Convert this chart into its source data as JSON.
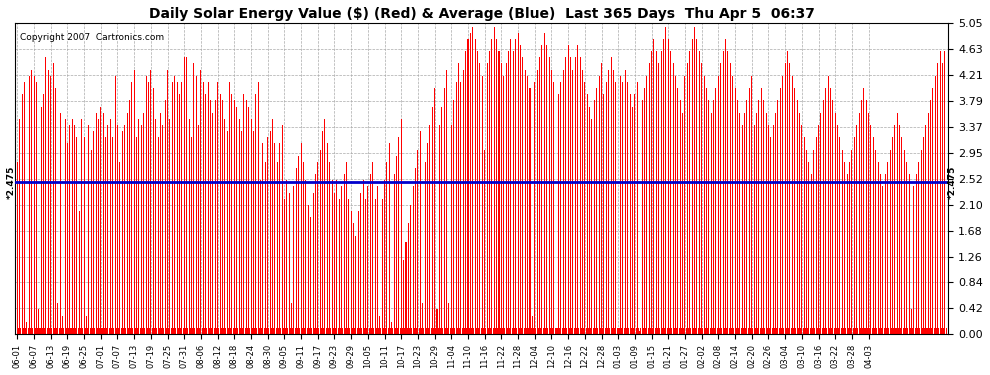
{
  "title": "Daily Solar Energy Value ($) (Red) & Average (Blue)  Last 365 Days  Thu Apr 5  06:37",
  "copyright": "Copyright 2007  Cartronics.com",
  "average_value": 2.475,
  "ylim": [
    0.0,
    5.05
  ],
  "yticks": [
    0.0,
    0.42,
    0.84,
    1.26,
    1.68,
    2.1,
    2.52,
    2.95,
    3.37,
    3.79,
    4.21,
    4.63,
    5.05
  ],
  "bar_color": "#ff0000",
  "avg_line_color": "#0000cc",
  "background_color": "#ffffff",
  "grid_color": "#aaaaaa",
  "title_fontsize": 10,
  "x_labels": [
    "06-01",
    "06-07",
    "06-13",
    "06-19",
    "06-25",
    "07-01",
    "07-07",
    "07-13",
    "07-19",
    "07-25",
    "07-31",
    "08-06",
    "08-12",
    "08-18",
    "08-24",
    "08-30",
    "09-05",
    "09-11",
    "09-17",
    "09-23",
    "09-29",
    "10-05",
    "10-11",
    "10-17",
    "10-23",
    "10-29",
    "11-04",
    "11-10",
    "11-16",
    "11-22",
    "11-28",
    "12-04",
    "12-10",
    "12-16",
    "12-22",
    "12-28",
    "01-03",
    "01-09",
    "01-15",
    "01-21",
    "01-27",
    "02-02",
    "02-08",
    "02-14",
    "02-20",
    "02-26",
    "03-04",
    "03-10",
    "03-16",
    "03-22",
    "03-28",
    "04-03"
  ],
  "values": [
    2.8,
    0.1,
    3.5,
    0.1,
    3.9,
    0.1,
    4.1,
    0.1,
    0.2,
    0.1,
    4.2,
    0.1,
    4.3,
    0.1,
    4.2,
    0.1,
    4.1,
    0.1,
    0.4,
    0.1,
    3.7,
    0.1,
    3.9,
    0.1,
    4.5,
    0.1,
    4.3,
    0.1,
    4.2,
    0.1,
    4.4,
    0.1,
    4.0,
    0.1,
    0.5,
    0.1,
    3.6,
    0.1,
    0.3,
    0.1,
    3.5,
    0.1,
    3.1,
    0.1,
    3.4,
    0.1,
    3.5,
    0.1,
    3.4,
    0.1,
    3.2,
    0.1,
    2.0,
    0.1,
    3.5,
    0.1,
    3.2,
    0.1,
    0.3,
    0.1,
    3.4,
    0.1,
    3.0,
    0.1,
    3.3,
    0.1,
    3.6,
    0.1,
    3.5,
    0.1,
    3.7,
    0.1,
    3.6,
    0.1,
    3.2,
    0.1,
    3.4,
    0.1,
    3.5,
    0.1,
    3.2,
    0.1,
    4.2,
    0.1,
    3.4,
    0.1,
    2.8,
    0.1,
    3.3,
    0.1,
    3.4,
    0.1,
    3.6,
    0.1,
    3.8,
    0.1,
    4.1,
    0.1,
    4.3,
    0.1,
    3.2,
    0.1,
    3.5,
    0.1,
    3.4,
    0.1,
    3.6,
    0.1,
    4.2,
    0.1,
    4.1,
    0.1,
    4.3,
    0.1,
    4.0,
    0.1,
    3.5,
    0.1,
    3.2,
    0.1,
    3.6,
    0.1,
    3.4,
    0.1,
    3.8,
    0.1,
    4.3,
    0.1,
    3.5,
    0.1,
    4.1,
    0.1,
    4.2,
    0.1,
    4.1,
    0.1,
    3.9,
    0.1,
    4.1,
    0.1,
    4.5,
    0.1,
    4.5,
    0.1,
    3.5,
    0.1,
    3.2,
    0.1,
    4.4,
    0.1,
    4.2,
    0.1,
    3.4,
    0.1,
    4.3,
    0.1,
    4.1,
    0.1,
    3.9,
    0.1,
    4.1,
    0.1,
    3.8,
    0.1,
    3.6,
    0.1,
    3.8,
    0.1,
    4.1,
    0.1,
    3.9,
    0.1,
    3.8,
    0.1,
    3.5,
    0.1,
    3.3,
    0.1,
    4.1,
    0.1,
    3.9,
    0.1,
    3.8,
    0.1,
    3.7,
    0.1,
    3.5,
    0.1,
    3.3,
    0.1,
    3.9,
    0.1,
    3.8,
    0.1,
    3.7,
    0.1,
    3.5,
    0.1,
    3.3,
    0.1,
    3.9,
    0.1,
    4.1,
    0.1,
    2.5,
    0.1,
    3.1,
    0.1,
    2.8,
    0.1,
    3.2,
    0.1,
    3.3,
    0.1,
    3.5,
    0.1,
    3.1,
    0.1,
    2.8,
    0.1,
    3.1,
    0.1,
    3.4,
    0.1,
    2.2,
    0.1,
    2.5,
    0.1,
    2.3,
    0.1,
    0.5,
    0.1,
    2.4,
    0.1,
    2.7,
    0.1,
    2.9,
    0.1,
    3.1,
    0.1,
    2.8,
    0.1,
    2.5,
    0.1,
    2.1,
    0.1,
    1.9,
    0.1,
    2.3,
    0.1,
    2.6,
    0.1,
    2.8,
    0.1,
    3.0,
    0.1,
    3.3,
    0.1,
    3.5,
    0.1,
    3.1,
    0.1,
    2.8,
    0.1,
    2.5,
    0.1,
    2.3,
    0.1,
    2.5,
    0.1,
    2.2,
    0.1,
    2.4,
    0.1,
    2.6,
    0.1,
    2.8,
    0.1,
    2.2,
    0.1,
    2.0,
    0.1,
    1.8,
    0.1,
    1.6,
    0.1,
    2.0,
    0.1,
    2.3,
    0.1,
    2.5,
    0.1,
    2.2,
    0.1,
    2.4,
    0.1,
    2.6,
    0.1,
    2.8,
    0.1,
    2.2,
    0.1,
    2.4,
    0.1,
    0.3,
    0.1,
    2.2,
    0.1,
    2.5,
    0.1,
    2.8,
    0.1,
    3.1,
    0.1,
    0.2,
    0.1,
    2.6,
    0.1,
    2.9,
    0.1,
    3.2,
    0.1,
    3.5,
    0.1,
    1.2,
    0.1,
    1.5,
    0.1,
    1.8,
    0.1,
    2.1,
    0.1,
    2.4,
    0.1,
    2.7,
    0.1,
    3.0,
    0.1,
    3.3,
    0.1,
    0.5,
    0.1,
    2.8,
    0.1,
    3.1,
    0.1,
    3.4,
    0.1,
    3.7,
    0.1,
    4.0,
    0.1,
    0.4,
    0.1,
    3.4,
    0.1,
    3.7,
    0.1,
    4.0,
    0.1,
    4.3,
    0.1,
    0.5,
    0.1,
    3.4,
    0.1,
    3.8,
    0.1,
    4.1,
    0.1,
    4.4,
    0.1,
    4.1,
    0.1,
    4.3,
    0.1,
    4.6,
    0.1,
    4.8,
    0.1,
    4.9,
    0.1,
    5.0,
    0.1,
    4.8,
    0.1,
    4.6,
    0.1,
    4.4,
    0.1,
    4.2,
    0.1,
    3.0,
    0.1,
    4.4,
    0.1,
    4.6,
    0.1,
    4.8,
    0.1,
    5.0,
    0.1,
    4.8,
    0.1,
    4.6,
    0.1,
    4.4,
    0.1,
    4.2,
    0.1,
    4.4,
    0.1,
    4.6,
    0.1,
    4.8,
    0.1,
    4.6,
    0.1,
    4.8,
    0.1,
    4.9,
    0.1,
    4.7,
    0.1,
    4.5,
    0.1,
    4.3,
    0.1,
    4.2,
    0.1,
    4.0,
    0.1,
    0.3,
    0.1,
    4.1,
    0.1,
    4.3,
    0.1,
    4.5,
    0.1,
    4.7,
    0.1,
    4.9,
    0.1,
    4.7,
    0.1,
    4.5,
    0.1,
    4.3,
    0.1,
    4.1,
    0.1,
    0.1,
    0.1,
    3.9,
    0.1,
    4.1,
    0.1,
    4.3,
    0.1,
    4.5,
    0.1,
    4.7,
    0.1,
    4.5,
    0.1,
    4.3,
    0.1,
    4.5,
    0.1,
    4.7,
    0.1,
    4.5,
    0.1,
    4.3,
    0.1,
    4.1,
    0.1,
    3.9,
    0.1,
    3.7,
    0.1,
    3.5,
    0.1,
    3.8,
    0.1,
    4.0,
    0.1,
    4.2,
    0.1,
    4.4,
    0.1,
    3.9,
    0.1,
    4.1,
    0.1,
    4.3,
    0.1,
    4.5,
    0.1,
    4.3,
    0.1,
    4.1,
    0.1,
    0.1,
    0.1,
    4.2,
    0.1,
    4.1,
    0.1,
    4.3,
    0.1,
    4.1,
    0.1,
    3.9,
    0.1,
    3.7,
    0.1,
    3.9,
    0.1,
    4.1,
    0.1,
    0.05,
    0.1,
    3.8,
    0.1,
    4.0,
    0.1,
    4.2,
    0.1,
    4.4,
    0.1,
    4.6,
    0.1,
    4.8,
    0.1,
    4.6,
    0.1,
    4.4,
    0.1,
    4.6,
    0.1,
    4.8,
    0.1,
    5.0,
    0.1,
    4.8,
    0.1,
    4.6,
    0.1,
    4.4,
    0.1,
    4.2,
    0.1,
    4.0,
    0.1,
    3.8,
    0.1,
    3.6,
    0.1,
    4.2,
    0.1,
    4.4,
    0.1,
    4.6,
    0.1,
    4.8,
    0.1,
    5.0,
    0.1,
    4.8,
    0.1,
    4.6,
    0.1,
    4.4,
    0.1,
    4.2,
    0.1,
    4.0,
    0.1,
    3.8,
    0.1,
    3.6,
    0.1,
    3.8,
    0.1,
    4.0,
    0.1,
    4.2,
    0.1,
    4.4,
    0.1,
    4.6,
    0.1,
    4.8,
    0.1,
    4.6,
    0.1,
    4.4,
    0.1,
    4.2,
    0.1,
    4.0,
    0.1,
    3.8,
    0.1,
    3.6,
    0.1,
    3.4,
    0.1,
    3.6,
    0.1,
    3.8,
    0.1,
    4.0,
    0.1,
    4.2,
    0.1,
    3.4,
    0.1,
    3.6,
    0.1,
    3.8,
    0.1,
    4.0,
    0.1,
    3.8,
    0.1,
    3.6,
    0.1,
    3.4,
    0.1,
    3.2,
    0.1,
    3.4,
    0.1,
    3.6,
    0.1,
    3.8,
    0.1,
    4.0,
    0.1,
    4.2,
    0.1,
    4.4,
    0.1,
    4.6,
    0.1,
    4.4,
    0.1,
    4.2,
    0.1,
    4.0,
    0.1,
    3.8,
    0.1,
    3.6,
    0.1,
    3.4,
    0.1,
    3.2,
    0.1,
    3.0,
    0.1,
    2.8,
    0.1,
    2.6,
    0.1,
    3.0,
    0.1,
    3.2,
    0.1,
    3.4,
    0.1,
    3.6,
    0.1,
    3.8,
    0.1,
    4.0,
    0.1,
    4.2,
    0.1,
    4.0,
    0.1,
    3.8,
    0.1,
    3.6,
    0.1,
    3.4,
    0.1,
    3.2,
    0.1,
    3.0,
    0.1,
    2.8,
    0.1,
    2.6,
    0.1,
    2.8,
    0.1,
    3.0,
    0.1,
    3.2,
    0.1,
    3.4,
    0.1,
    3.6,
    0.1,
    3.8,
    0.1,
    4.0,
    0.1,
    3.8,
    0.1,
    3.6,
    0.1,
    3.4,
    0.1,
    3.2,
    0.1,
    3.0,
    0.1,
    2.8,
    0.1,
    2.6,
    0.1,
    2.4,
    0.1,
    2.6,
    0.1,
    2.8,
    0.1,
    3.0,
    0.1,
    3.2,
    0.1,
    3.4,
    0.1,
    3.6,
    0.1,
    3.4,
    0.1,
    3.2,
    0.1,
    3.0,
    0.1,
    2.8,
    0.1,
    2.6,
    0.1,
    0.4,
    0.1,
    2.4,
    0.1,
    2.6,
    0.1,
    2.8,
    0.1,
    3.0,
    0.1,
    3.2,
    0.1,
    3.4,
    0.1,
    3.6,
    0.1,
    3.8,
    0.1,
    4.0,
    0.1,
    4.2,
    0.1,
    4.4,
    0.1,
    4.6,
    0.1,
    4.4,
    0.1,
    4.6,
    0.1
  ]
}
